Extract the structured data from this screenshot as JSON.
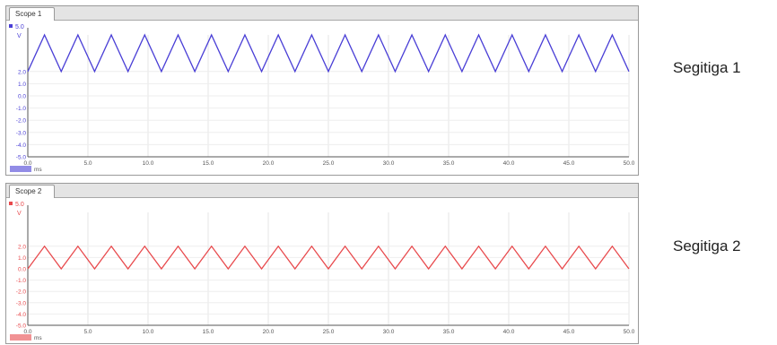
{
  "scopes": [
    {
      "tab_label": "Scope 1",
      "channel_label": "5.0",
      "unit_label": "V",
      "unit_time": "ms",
      "color": "#4a3fd6",
      "y_ticks": [
        "2.0",
        "1.0",
        "0.0",
        "-1.0",
        "-2.0",
        "-3.0",
        "-4.0",
        "-5.0"
      ],
      "x_ticks": [
        "0.0",
        "5.0",
        "10.0",
        "15.0",
        "20.0",
        "25.0",
        "30.0",
        "35.0",
        "40.0",
        "45.0",
        "50.0"
      ],
      "side_label": "Segitiga 1",
      "chart_data": {
        "type": "line",
        "x_range_ms": [
          0,
          50
        ],
        "y_range": [
          -5,
          5
        ],
        "waveform": "triangle",
        "cycles": 18,
        "y_min": 2.0,
        "y_max": 5.0,
        "x_unit": "ms",
        "y_unit": "V"
      }
    },
    {
      "tab_label": "Scope 2",
      "channel_label": "5.0",
      "unit_label": "V",
      "unit_time": "ms",
      "color": "#e8494c",
      "y_ticks": [
        "2.0",
        "1.0",
        "0.0",
        "-1.0",
        "-2.0",
        "-3.0",
        "-4.0",
        "-5.0"
      ],
      "x_ticks": [
        "0.0",
        "5.0",
        "10.0",
        "15.0",
        "20.0",
        "25.0",
        "30.0",
        "35.0",
        "40.0",
        "45.0",
        "50.0"
      ],
      "side_label": "Segitiga 2",
      "chart_data": {
        "type": "line",
        "x_range_ms": [
          0,
          50
        ],
        "y_range": [
          -5,
          5
        ],
        "waveform": "triangle",
        "cycles": 18,
        "y_min": 0.0,
        "y_max": 2.0,
        "x_unit": "ms",
        "y_unit": "V"
      }
    }
  ]
}
